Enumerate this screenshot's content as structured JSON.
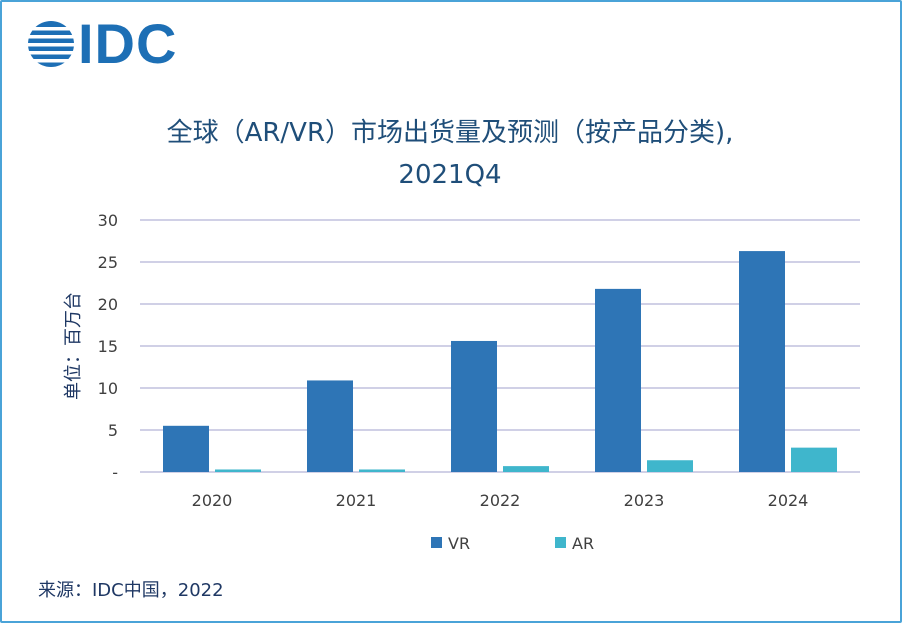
{
  "logo": {
    "text": "IDC"
  },
  "title_lines": [
    "全球（AR/VR）市场出货量及预测（按产品分类),",
    "2021Q4"
  ],
  "source": "来源：IDC中国，2022",
  "colors": {
    "vr": "#2e75b6",
    "ar": "#3fb6cc",
    "grid": "#b4b4d8",
    "title": "#1f4e79",
    "logo": "#1d6fb5"
  },
  "chart_data": {
    "type": "bar",
    "title": "全球（AR/VR）市场出货量及预测（按产品分类), 2021Q4",
    "xlabel": "",
    "ylabel": "单位：百万台",
    "categories": [
      "2020",
      "2021",
      "2022",
      "2023",
      "2024"
    ],
    "series": [
      {
        "name": "VR",
        "color": "#2e75b6",
        "values": [
          5.5,
          10.9,
          15.6,
          21.8,
          26.3
        ]
      },
      {
        "name": "AR",
        "color": "#3fb6cc",
        "values": [
          0.3,
          0.3,
          0.7,
          1.4,
          2.9
        ]
      }
    ],
    "ylim": [
      0,
      30
    ],
    "yticks": [
      0,
      5,
      10,
      15,
      20,
      25,
      30
    ],
    "ytick_labels": [
      "-",
      "5",
      "10",
      "15",
      "20",
      "25",
      "30"
    ],
    "grid": true,
    "legend": "bottom-center"
  }
}
